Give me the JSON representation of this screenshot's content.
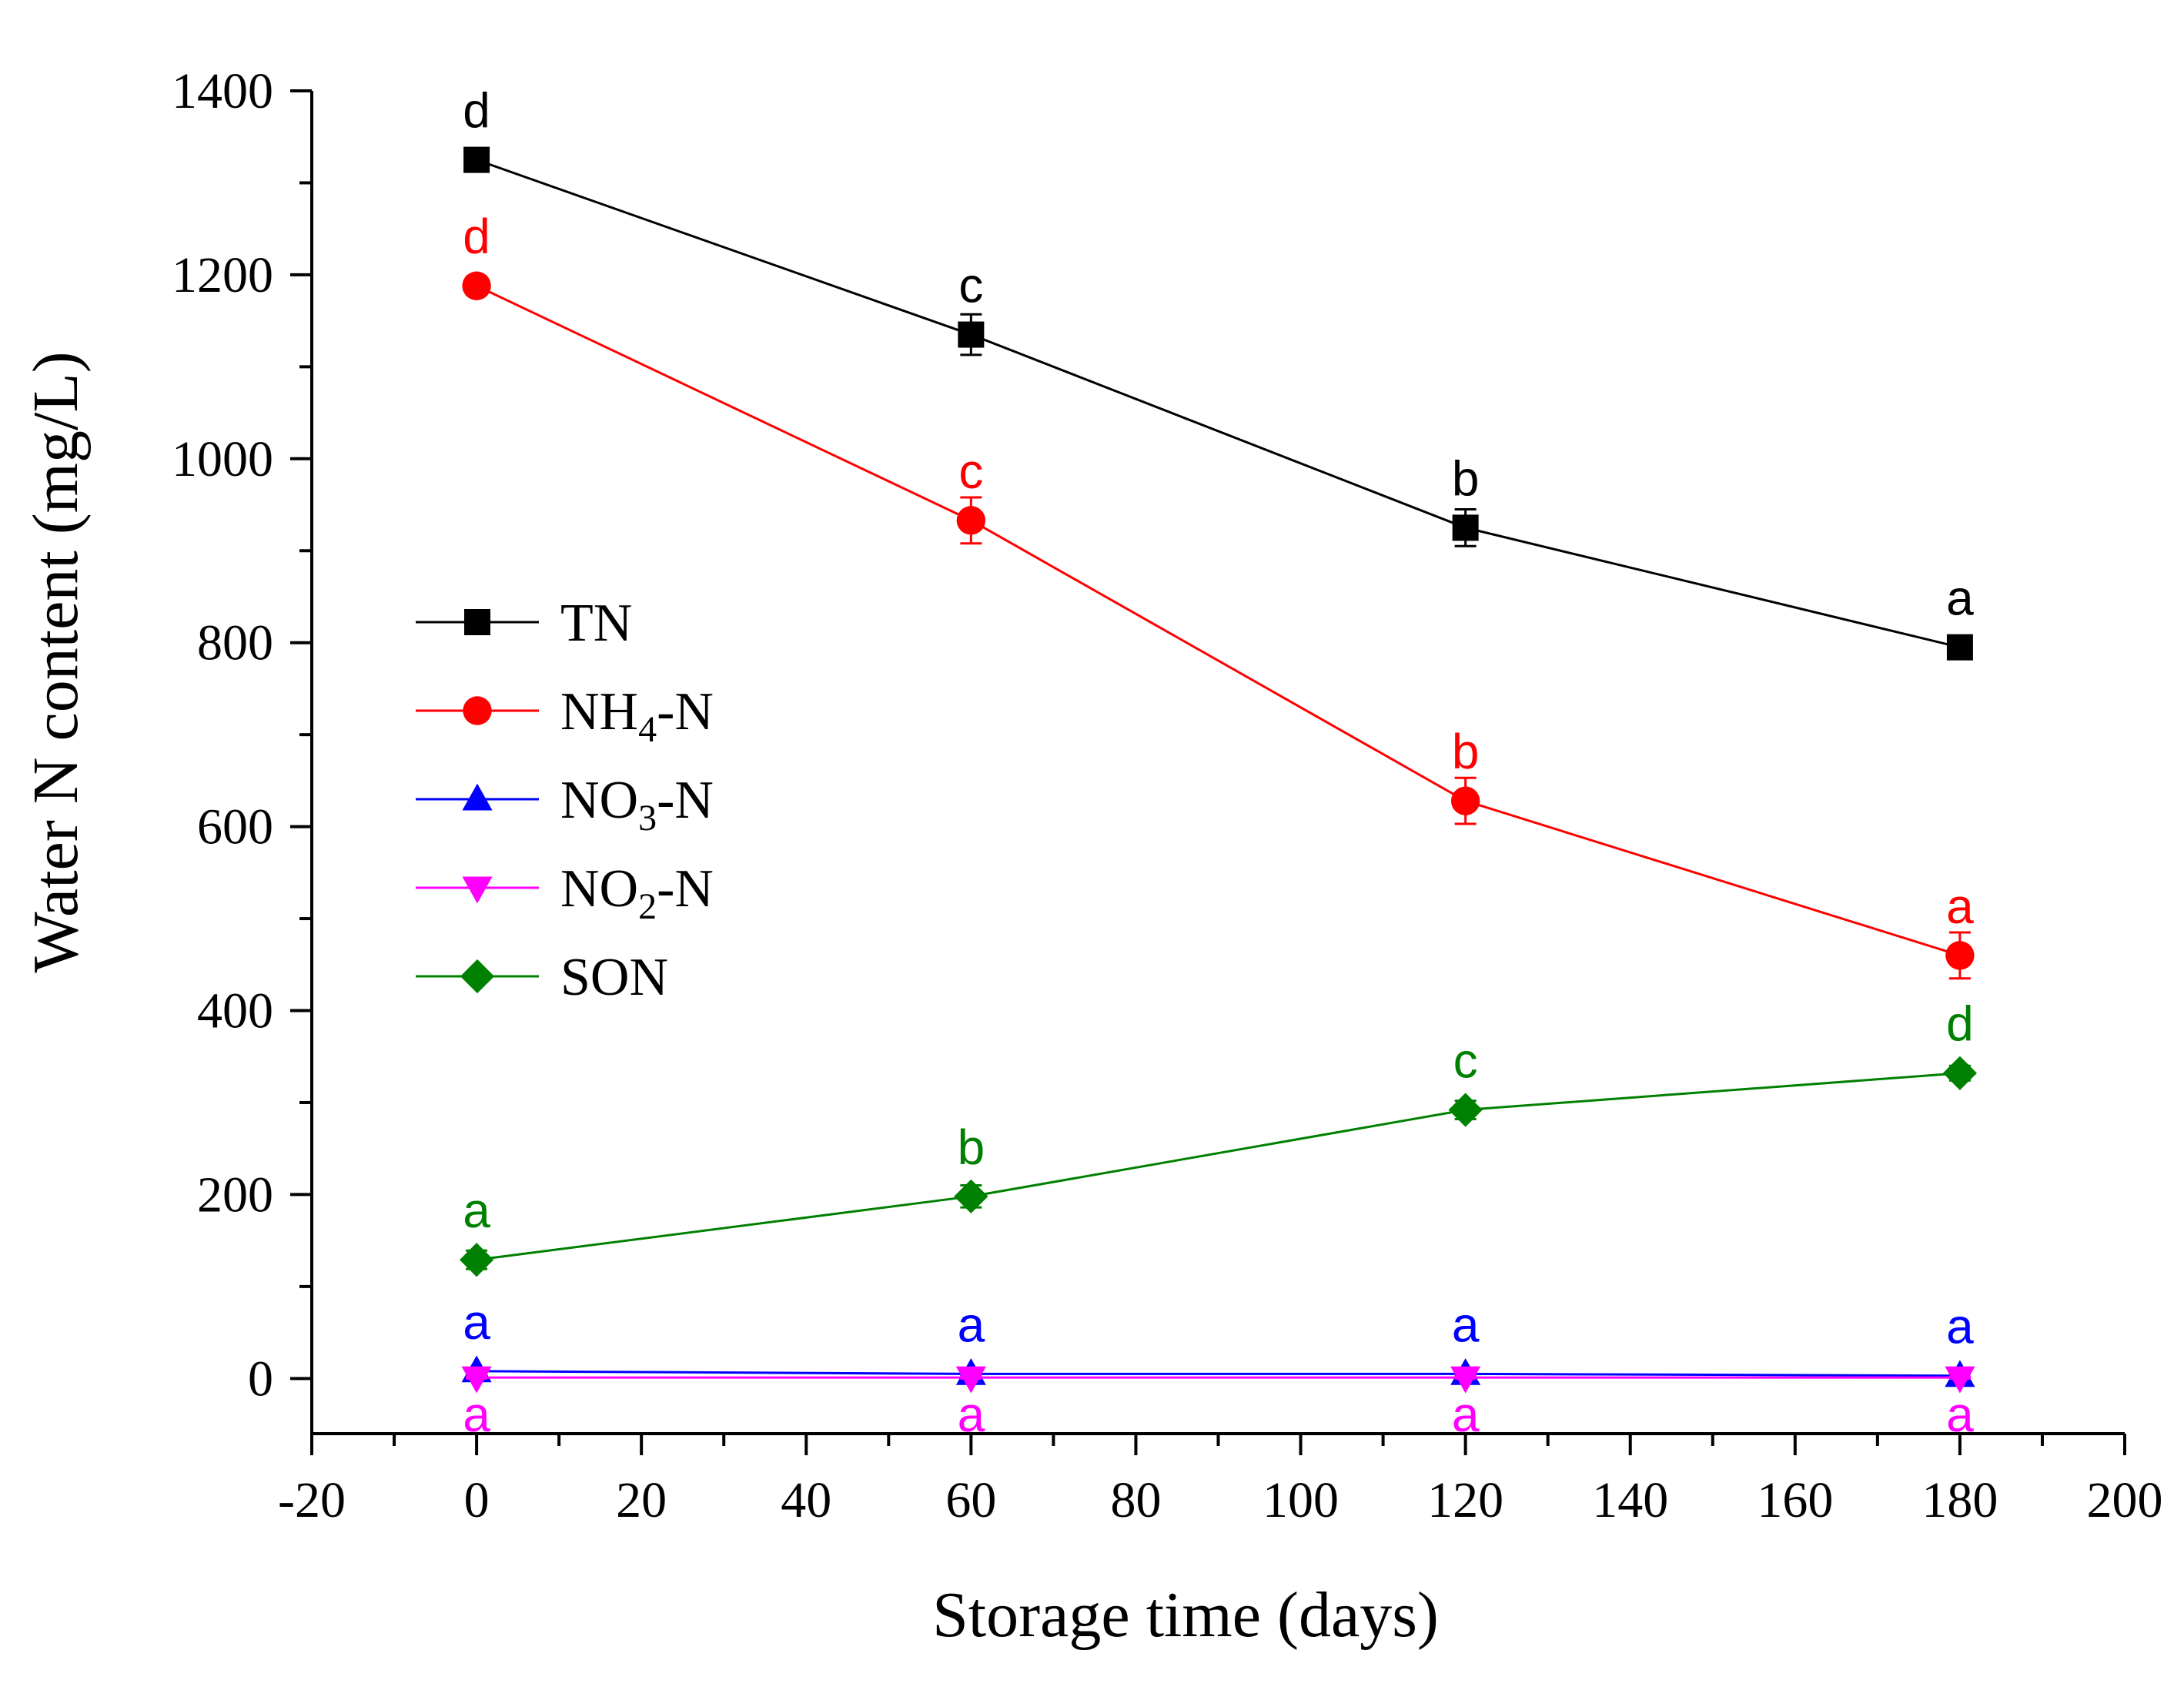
{
  "chart_data": {
    "type": "line",
    "title": "",
    "xlabel": "Storage time (days)",
    "ylabel": "Water N content (mg/L)",
    "xlim": [
      -20,
      200
    ],
    "ylim": [
      -60,
      1400
    ],
    "x_ticks": [
      -20,
      0,
      20,
      40,
      60,
      80,
      100,
      120,
      140,
      160,
      180,
      200
    ],
    "y_ticks": [
      0,
      200,
      400,
      600,
      800,
      1000,
      1200,
      1400
    ],
    "x_tick_labels": [
      "-20",
      "0",
      "20",
      "40",
      "60",
      "80",
      "100",
      "120",
      "140",
      "160",
      "180",
      "200"
    ],
    "y_tick_labels": [
      "0",
      "200",
      "400",
      "600",
      "800",
      "1000",
      "1200",
      "1400"
    ],
    "x": [
      0,
      60,
      120,
      180
    ],
    "legend_position": "middle-left",
    "series": [
      {
        "name": "TN",
        "legend": {
          "main": "TN",
          "sub": "",
          "rest": ""
        },
        "color": "#000000",
        "marker": "square",
        "values": [
          1325,
          1135,
          925,
          795
        ],
        "errors": [
          12,
          22,
          20,
          10
        ],
        "letters": [
          "d",
          "c",
          "b",
          "a"
        ],
        "letter_side": "above"
      },
      {
        "name": "NH4-N",
        "legend": {
          "main": "NH",
          "sub": "4",
          "rest": "-N"
        },
        "color": "#ff0000",
        "marker": "circle",
        "values": [
          1188,
          933,
          628,
          460
        ],
        "errors": [
          10,
          25,
          25,
          25
        ],
        "letters": [
          "d",
          "c",
          "b",
          "a"
        ],
        "letter_side": "above"
      },
      {
        "name": "NO3-N",
        "legend": {
          "main": "NO",
          "sub": "3",
          "rest": "-N"
        },
        "color": "#0000ff",
        "marker": "triangle-up",
        "values": [
          8,
          5,
          5,
          3
        ],
        "errors": [
          2,
          2,
          2,
          2
        ],
        "letters": [
          "a",
          "a",
          "a",
          "a"
        ],
        "letter_side": "above"
      },
      {
        "name": "NO2-N",
        "legend": {
          "main": "NO",
          "sub": "2",
          "rest": "-N"
        },
        "color": "#ff00ff",
        "marker": "triangle-down",
        "values": [
          1,
          1,
          1,
          1
        ],
        "errors": [
          1,
          1,
          1,
          1
        ],
        "letters": [
          "a",
          "a",
          "a",
          "a"
        ],
        "letter_side": "below"
      },
      {
        "name": "SON",
        "legend": {
          "main": "SON",
          "sub": "",
          "rest": ""
        },
        "color": "#008000",
        "marker": "diamond",
        "values": [
          129,
          198,
          292,
          332
        ],
        "errors": [
          10,
          12,
          10,
          8
        ],
        "letters": [
          "a",
          "b",
          "c",
          "d"
        ],
        "letter_side": "above"
      }
    ]
  }
}
